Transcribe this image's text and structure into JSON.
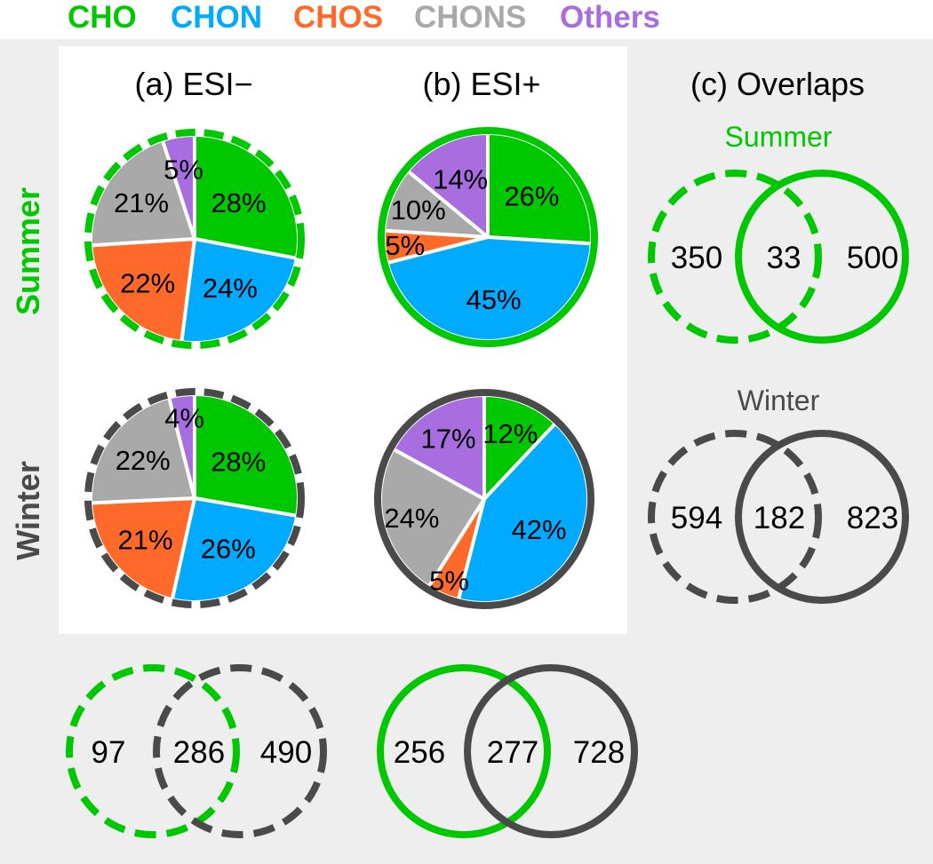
{
  "colors": {
    "CHO": "#00c800",
    "CHON": "#00aaff",
    "CHOS": "#ff6a2a",
    "CHONS": "#a9a9a9",
    "Others": "#a86ee0",
    "summer": "#00c800",
    "winter": "#4a4a4a",
    "panel_bg": "#eeeeee"
  },
  "legend": [
    "CHO",
    "CHON",
    "CHOS",
    "CHONS",
    "Others"
  ],
  "row_labels": {
    "summer": "Summer",
    "winter": "Winter"
  },
  "column_titles": {
    "a": "(a) ESI−",
    "b": "(b) ESI+",
    "c": "(c) Overlaps"
  },
  "chart_data": [
    {
      "type": "pie",
      "panel": "(a) ESI−",
      "row": "Summer",
      "outline": "dashed",
      "outline_color": "summer",
      "slices": [
        {
          "label": "CHO",
          "value": 28,
          "text": "28%"
        },
        {
          "label": "CHON",
          "value": 24,
          "text": "24%"
        },
        {
          "label": "CHOS",
          "value": 22,
          "text": "22%"
        },
        {
          "label": "CHONS",
          "value": 21,
          "text": "21%"
        },
        {
          "label": "Others",
          "value": 5,
          "text": "5%"
        }
      ]
    },
    {
      "type": "pie",
      "panel": "(b) ESI+",
      "row": "Summer",
      "outline": "solid",
      "outline_color": "summer",
      "slices": [
        {
          "label": "CHO",
          "value": 26,
          "text": "26%"
        },
        {
          "label": "CHON",
          "value": 45,
          "text": "45%"
        },
        {
          "label": "CHOS",
          "value": 5,
          "text": "5%"
        },
        {
          "label": "CHONS",
          "value": 10,
          "text": "10%"
        },
        {
          "label": "Others",
          "value": 14,
          "text": "14%"
        }
      ]
    },
    {
      "type": "pie",
      "panel": "(a) ESI−",
      "row": "Winter",
      "outline": "dashed",
      "outline_color": "winter",
      "slices": [
        {
          "label": "CHO",
          "value": 28,
          "text": "28%"
        },
        {
          "label": "CHON",
          "value": 26,
          "text": "26%"
        },
        {
          "label": "CHOS",
          "value": 21,
          "text": "21%"
        },
        {
          "label": "CHONS",
          "value": 22,
          "text": "22%"
        },
        {
          "label": "Others",
          "value": 4,
          "text": "4%"
        }
      ]
    },
    {
      "type": "pie",
      "panel": "(b) ESI+",
      "row": "Winter",
      "outline": "solid",
      "outline_color": "winter",
      "slices": [
        {
          "label": "CHO",
          "value": 12,
          "text": "12%"
        },
        {
          "label": "CHON",
          "value": 42,
          "text": "42%"
        },
        {
          "label": "CHOS",
          "value": 5,
          "text": "5%"
        },
        {
          "label": "CHONS",
          "value": 24,
          "text": "24%"
        },
        {
          "label": "Others",
          "value": 17,
          "text": "17%"
        }
      ]
    }
  ],
  "venns": [
    {
      "title": "Summer",
      "title_color": "summer",
      "left": {
        "style": "dashed",
        "color": "summer"
      },
      "right": {
        "style": "solid",
        "color": "summer"
      },
      "values": [
        "350",
        "33",
        "500"
      ]
    },
    {
      "title": "Winter",
      "title_color": "winter",
      "left": {
        "style": "dashed",
        "color": "winter"
      },
      "right": {
        "style": "solid",
        "color": "winter"
      },
      "values": [
        "594",
        "182",
        "823"
      ]
    },
    {
      "title": "",
      "left": {
        "style": "dashed",
        "color": "summer"
      },
      "right": {
        "style": "dashed",
        "color": "winter"
      },
      "values": [
        "97",
        "286",
        "490"
      ]
    },
    {
      "title": "",
      "left": {
        "style": "solid",
        "color": "summer"
      },
      "right": {
        "style": "solid",
        "color": "winter"
      },
      "values": [
        "256",
        "277",
        "728"
      ]
    }
  ]
}
